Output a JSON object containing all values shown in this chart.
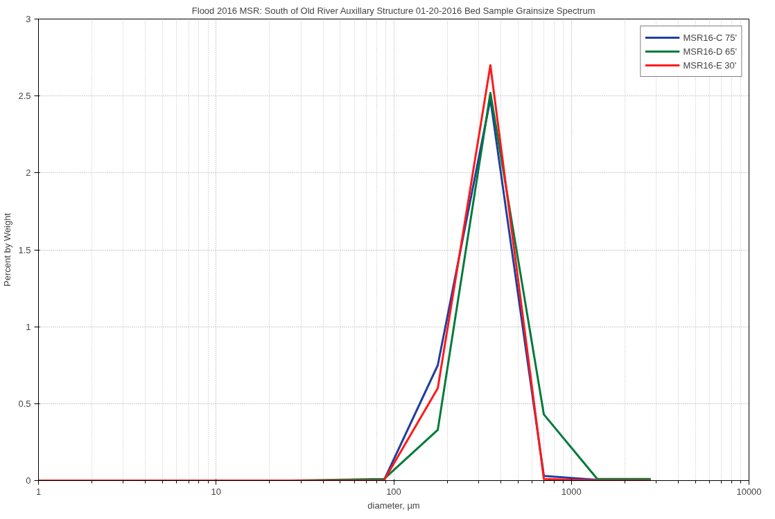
{
  "chart_data": {
    "type": "line",
    "title": "Flood 2016 MSR: South of Old River Auxillary Structure 01-20-2016 Bed Sample Grainsize Spectrum",
    "xlabel": "diameter, µm",
    "ylabel": "Percent by Weight",
    "log": "x",
    "grid": true,
    "legend": "top right",
    "line_style": "solid",
    "marker": "none",
    "xlim": [
      1,
      10000
    ],
    "xticks": [
      1,
      10,
      100,
      1000,
      10000
    ],
    "ylim": [
      0,
      3
    ],
    "yticks": [
      0,
      0.5,
      1,
      1.5,
      2,
      2.5,
      3
    ],
    "series": [
      {
        "name": "MSR16-C 75'",
        "color": "#1f3fa0",
        "x": [
          1,
          88,
          177,
          350,
          700,
          1400
        ],
        "values": [
          0,
          0,
          0.75,
          2.48,
          0.03,
          0.005
        ]
      },
      {
        "name": "MSR16-D 65'",
        "color": "#007a3a",
        "x": [
          26,
          88,
          177,
          350,
          700,
          1400,
          2800
        ],
        "values": [
          0,
          0.01,
          0.33,
          2.52,
          0.43,
          0.01,
          0.01
        ]
      },
      {
        "name": "MSR16-E 30'",
        "color": "#ff1a1a",
        "x": [
          1,
          88,
          177,
          350,
          700,
          1400,
          2800
        ],
        "values": [
          0,
          0,
          0.6,
          2.7,
          0.01,
          0,
          0
        ]
      }
    ]
  }
}
